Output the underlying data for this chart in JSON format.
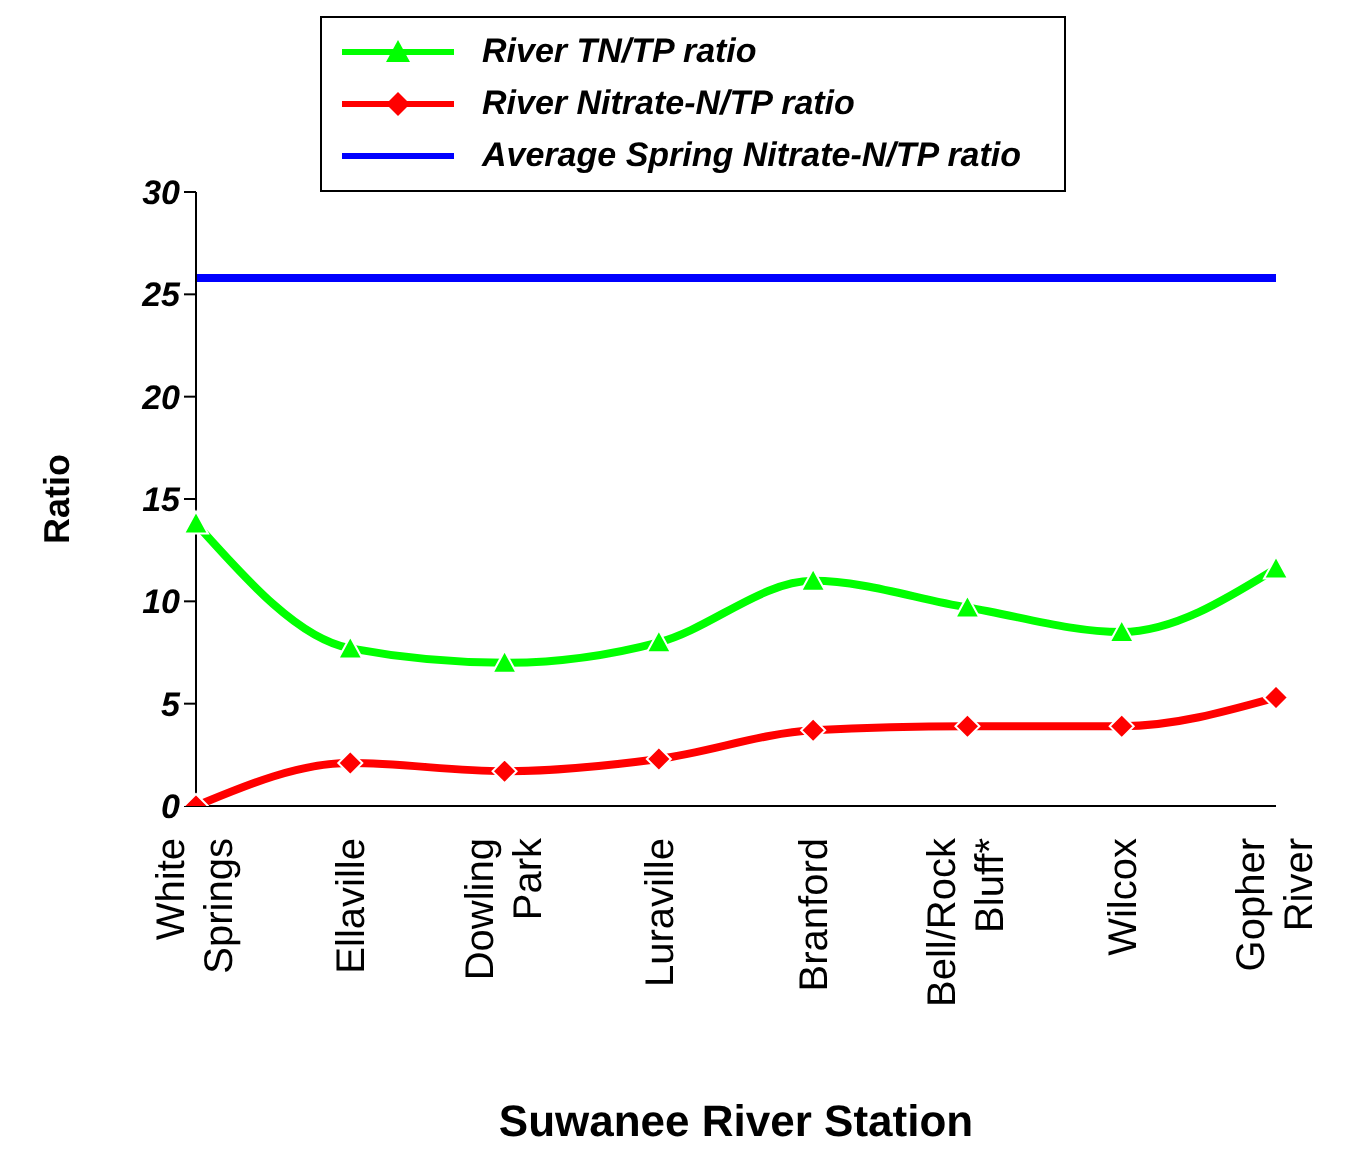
{
  "chart_data": {
    "type": "line",
    "xlabel": "Suwanee River Station",
    "ylabel": "Ratio",
    "categories": [
      "White Springs",
      "Ellaville",
      "Dowling Park",
      "Luraville",
      "Branford",
      "Bell/Rock Bluff*",
      "Wilcox",
      "Gopher River"
    ],
    "series": [
      {
        "name": "River TN/TP ratio",
        "color": "#00ff00",
        "marker": "triangle",
        "values": [
          13.8,
          7.7,
          7.0,
          8.0,
          11.0,
          9.7,
          8.5,
          11.6
        ]
      },
      {
        "name": "River Nitrate-N/TP ratio",
        "color": "#ff0000",
        "marker": "diamond",
        "values": [
          0,
          2.1,
          1.7,
          2.3,
          3.7,
          3.9,
          3.9,
          5.3
        ]
      },
      {
        "name": "Average Spring Nitrate-N/TP ratio",
        "color": "#0000ff",
        "marker": "none",
        "values": [
          25.8,
          25.8,
          25.8,
          25.8,
          25.8,
          25.8,
          25.8,
          25.8
        ]
      }
    ],
    "ylim": [
      0,
      30
    ],
    "yticks": [
      0,
      5,
      10,
      15,
      20,
      25,
      30
    ],
    "legend": "top"
  }
}
